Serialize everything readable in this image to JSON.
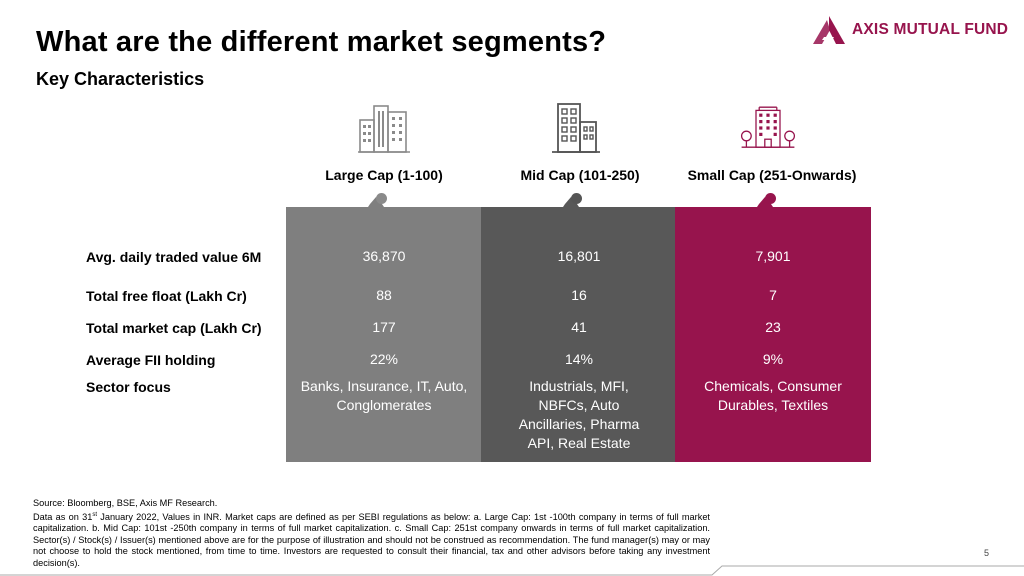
{
  "slide": {
    "title": "What are the different market segments?",
    "subtitle": "Key Characteristics",
    "page_number": "5"
  },
  "logo": {
    "text": "AXIS MUTUAL FUND",
    "brand_color": "#97144d"
  },
  "columns": [
    {
      "heading": "Large Cap (1-100)",
      "icon": "large-building-icon",
      "color": "#7f7f7f"
    },
    {
      "heading": "Mid Cap (101-250)",
      "icon": "mid-building-icon",
      "color": "#585858"
    },
    {
      "heading": "Small Cap (251-Onwards)",
      "icon": "small-building-trees-icon",
      "color": "#97144d"
    }
  ],
  "rows": [
    {
      "label": "Avg. daily traded value 6M",
      "values": [
        "36,870",
        "16,801",
        "7,901"
      ]
    },
    {
      "label": "Total free float (Lakh Cr)",
      "values": [
        "88",
        "16",
        "7"
      ]
    },
    {
      "label": "Total market cap (Lakh Cr)",
      "values": [
        "177",
        "41",
        "23"
      ]
    },
    {
      "label": "Average FII holding",
      "values": [
        "22%",
        "14%",
        "9%"
      ]
    },
    {
      "label": "Sector focus",
      "values": [
        "Banks, Insurance, IT, Auto, Conglomerates",
        "Industrials, MFI, NBFCs, Auto Ancillaries, Pharma API, Real Estate",
        "Chemicals, Consumer Durables, Textiles"
      ]
    }
  ],
  "footnote": {
    "source": "Source: Bloomberg, BSE, Axis MF Research.",
    "data_prefix": "Data as on 31",
    "data_sup": "st",
    "data_rest": " January 2022, Values in INR. Market caps are defined as per SEBI regulations as below: a. Large Cap: 1st -100th company in terms of full market capitalization. b. Mid Cap: 101st -250th company in terms of full market capitalization. c. Small Cap: 251st company onwards in terms of full market capitalization. Sector(s) / Stock(s) / Issuer(s) mentioned above are for the purpose of illustration and should not be construed as recommendation. The fund manager(s) may or may not choose to hold the stock mentioned, from time to time. Investors are requested to consult their financial, tax and other advisors before taking any investment decision(s)."
  }
}
